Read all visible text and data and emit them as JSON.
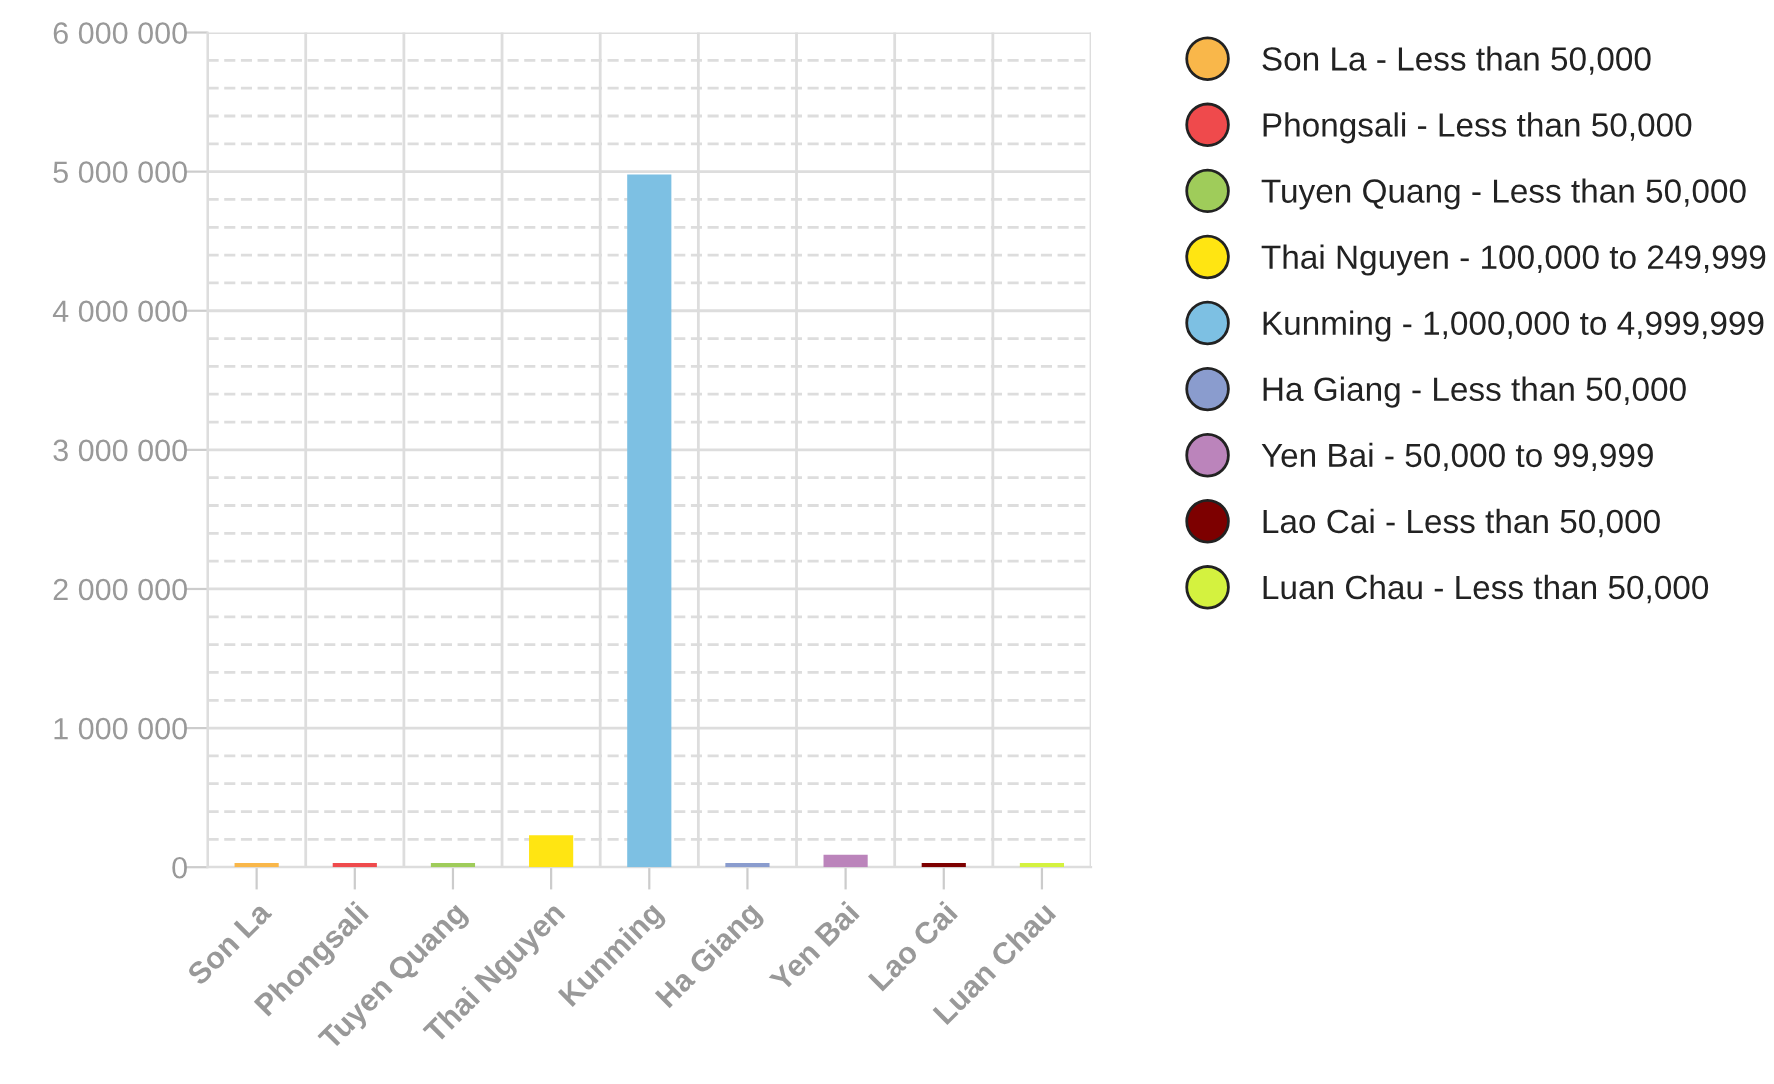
{
  "chart_data": {
    "type": "bar",
    "categories": [
      "Son La",
      "Phongsali",
      "Tuyen Quang",
      "Thai Nguyen",
      "Kunming",
      "Ha Giang",
      "Yen Bai",
      "Lao Cai",
      "Luan Chau"
    ],
    "series": [
      {
        "name": "Son La - Less than 50,000",
        "color": "#f9b74a",
        "values": [
          30000,
          null,
          null,
          null,
          null,
          null,
          null,
          null,
          null
        ]
      },
      {
        "name": "Phongsali - Less than 50,000",
        "color": "#ef4a4c",
        "values": [
          null,
          30000,
          null,
          null,
          null,
          null,
          null,
          null,
          null
        ]
      },
      {
        "name": "Tuyen Quang - Less than 50,000",
        "color": "#9fcc5a",
        "values": [
          null,
          null,
          30000,
          null,
          null,
          null,
          null,
          null,
          null
        ]
      },
      {
        "name": "Thai Nguyen - 100,000 to 249,999",
        "color": "#ffe512",
        "values": [
          null,
          null,
          null,
          230000,
          null,
          null,
          null,
          null,
          null
        ]
      },
      {
        "name": "Kunming - 1,000,000 to 4,999,999",
        "color": "#7dc0e3",
        "values": [
          null,
          null,
          null,
          null,
          4980000,
          null,
          null,
          null,
          null
        ]
      },
      {
        "name": "Ha Giang - Less than 50,000",
        "color": "#8a9cce",
        "values": [
          null,
          null,
          null,
          null,
          null,
          30000,
          null,
          null,
          null
        ]
      },
      {
        "name": "Yen Bai - 50,000 to 99,999",
        "color": "#bb84bb",
        "values": [
          null,
          null,
          null,
          null,
          null,
          null,
          90000,
          null,
          null
        ]
      },
      {
        "name": "Lao Cai - Less than 50,000",
        "color": "#7d0000",
        "values": [
          null,
          null,
          null,
          null,
          null,
          null,
          null,
          30000,
          null
        ]
      },
      {
        "name": "Luan Chau - Less than 50,000",
        "color": "#d4f23f",
        "values": [
          null,
          null,
          null,
          null,
          null,
          null,
          null,
          null,
          30000
        ]
      }
    ],
    "ylim": [
      0,
      6000000
    ],
    "yticks": [
      {
        "value": 0,
        "label": "0"
      },
      {
        "value": 200000,
        "label": null
      },
      {
        "value": 400000,
        "label": null
      },
      {
        "value": 600000,
        "label": null
      },
      {
        "value": 800000,
        "label": null
      },
      {
        "value": 1000000,
        "label": "1 000 000"
      },
      {
        "value": 1200000,
        "label": null
      },
      {
        "value": 1400000,
        "label": null
      },
      {
        "value": 1600000,
        "label": null
      },
      {
        "value": 1800000,
        "label": null
      },
      {
        "value": 2000000,
        "label": "2 000 000"
      },
      {
        "value": 2200000,
        "label": null
      },
      {
        "value": 2400000,
        "label": null
      },
      {
        "value": 2600000,
        "label": null
      },
      {
        "value": 2800000,
        "label": null
      },
      {
        "value": 3000000,
        "label": "3 000 000"
      },
      {
        "value": 3200000,
        "label": null
      },
      {
        "value": 3400000,
        "label": null
      },
      {
        "value": 3600000,
        "label": null
      },
      {
        "value": 3800000,
        "label": null
      },
      {
        "value": 4000000,
        "label": "4 000 000"
      },
      {
        "value": 4200000,
        "label": null
      },
      {
        "value": 4400000,
        "label": null
      },
      {
        "value": 4600000,
        "label": null
      },
      {
        "value": 4800000,
        "label": null
      },
      {
        "value": 5000000,
        "label": "5 000 000"
      },
      {
        "value": 5200000,
        "label": null
      },
      {
        "value": 5400000,
        "label": null
      },
      {
        "value": 5600000,
        "label": null
      },
      {
        "value": 5800000,
        "label": null
      },
      {
        "value": 6000000,
        "label": "6 000 000"
      }
    ],
    "grid": true,
    "legend": "right"
  }
}
